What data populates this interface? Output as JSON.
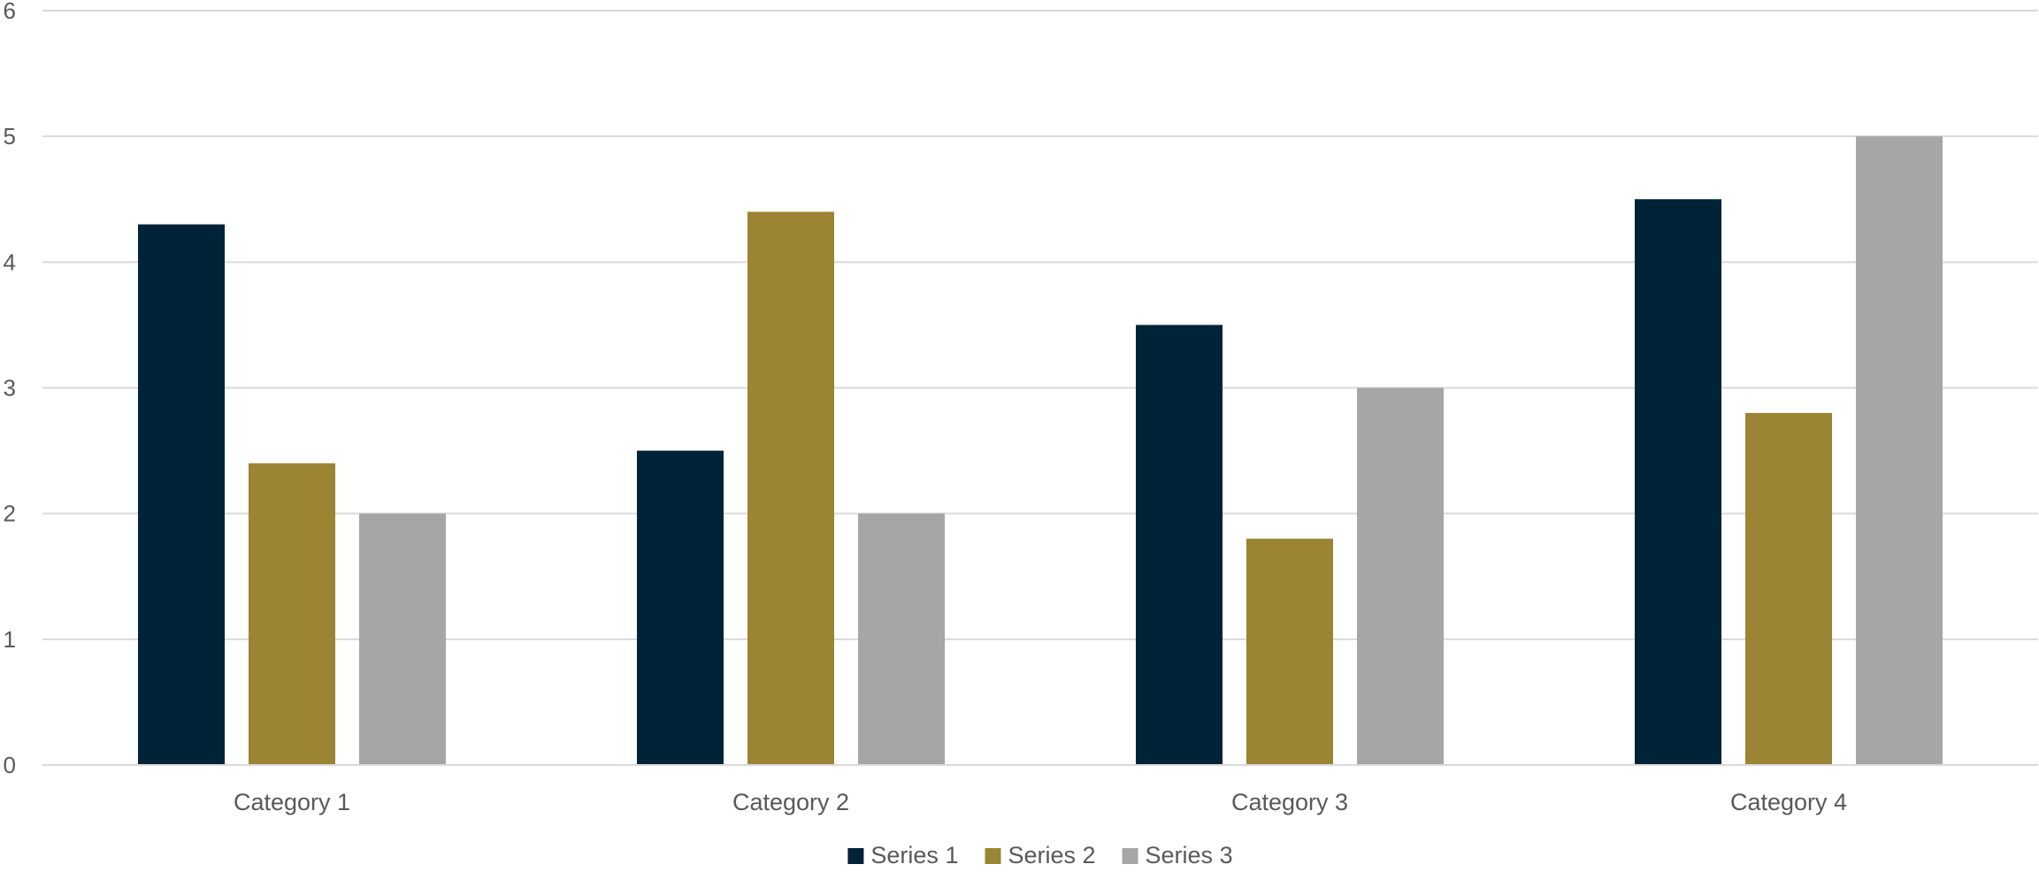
{
  "chart_data": {
    "type": "bar",
    "title": "",
    "xlabel": "",
    "ylabel": "",
    "categories": [
      "Category 1",
      "Category 2",
      "Category 3",
      "Category 4"
    ],
    "series": [
      {
        "name": "Series 1",
        "values": [
          4.3,
          2.5,
          3.5,
          4.5
        ],
        "color": "#002337"
      },
      {
        "name": "Series 2",
        "values": [
          2.4,
          4.4,
          1.8,
          2.8
        ],
        "color": "#9b8433"
      },
      {
        "name": "Series 3",
        "values": [
          2,
          2,
          3,
          5
        ],
        "color": "#a6a6a6"
      }
    ],
    "ylim": [
      0,
      6
    ],
    "yticks": [
      "0",
      "1",
      "2",
      "3",
      "4",
      "5",
      "6"
    ],
    "grid": "horizontal",
    "legend": "bottom-center"
  }
}
